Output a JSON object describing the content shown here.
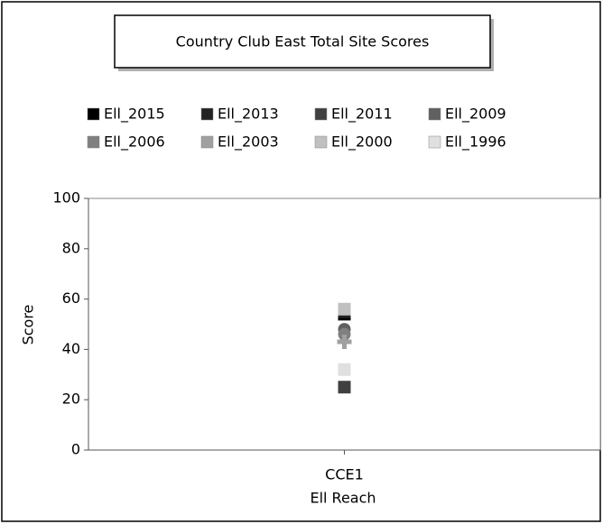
{
  "chart_data": {
    "type": "scatter",
    "title": "Country Club East Total Site Scores",
    "categories": [
      "CCE1"
    ],
    "x_label": "Ell Reach",
    "y_label": "Score",
    "series": [
      {
        "name": "Ell_2015",
        "color": "#000000",
        "values": [
          54
        ]
      },
      {
        "name": "Ell_2013",
        "color": "#222222",
        "values": [
          55
        ]
      },
      {
        "name": "Ell_2011",
        "color": "#404040",
        "values": [
          25
        ]
      },
      {
        "name": "Ell_2009",
        "color": "#606060",
        "values": [
          48
        ]
      },
      {
        "name": "Ell_2006",
        "color": "#808080",
        "values": [
          46
        ]
      },
      {
        "name": "Ell_2003",
        "color": "#a0a0a0",
        "values": [
          43
        ]
      },
      {
        "name": "Ell_2000",
        "color": "#c0c0c0",
        "values": [
          56
        ]
      },
      {
        "name": "Ell_1996",
        "color": "#e0e0e0",
        "values": [
          32
        ]
      }
    ],
    "ylim": [
      0,
      100
    ],
    "yticks": [
      0,
      20,
      40,
      60,
      80,
      100
    ],
    "grid": false
  }
}
